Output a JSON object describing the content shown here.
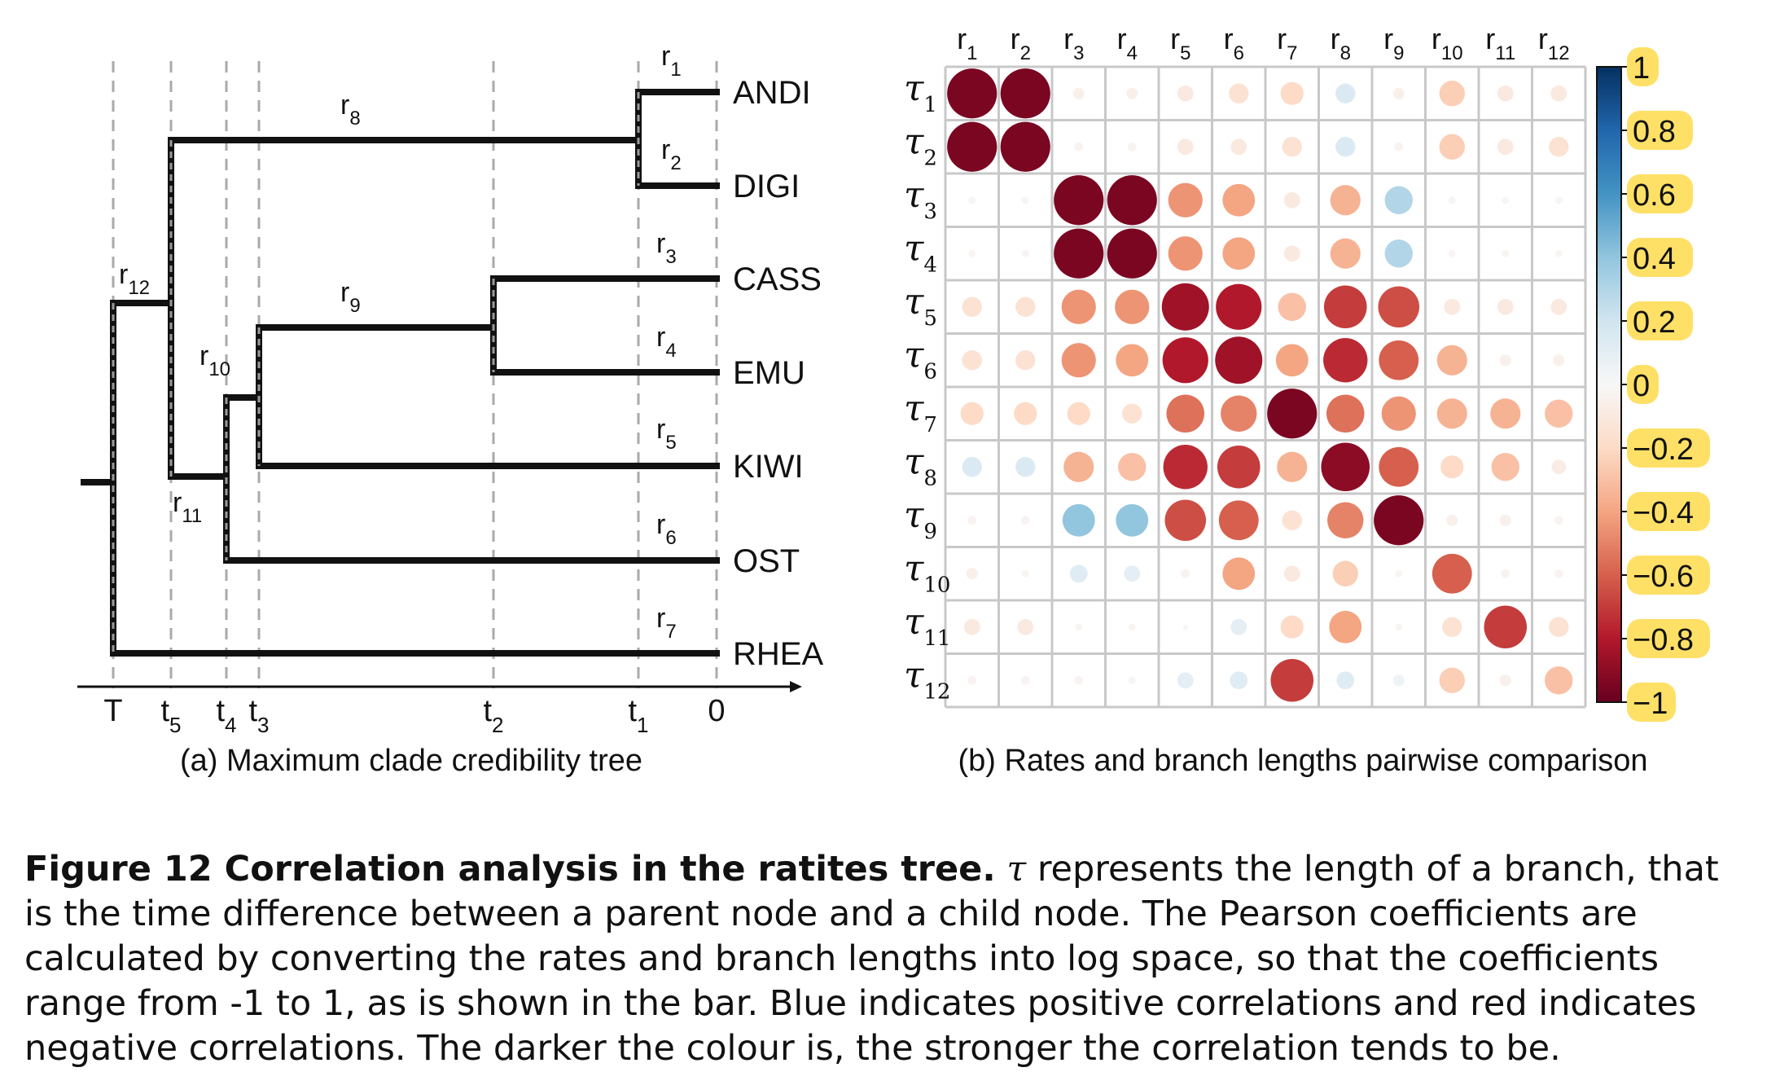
{
  "tree": {
    "caption": "(a) Maximum clade credibility tree",
    "leaves": [
      "ANDI",
      "DIGI",
      "CASS",
      "EMU",
      "KIWI",
      "OST",
      "RHEA"
    ],
    "branch_labels": [
      {
        "base": "r",
        "sub": "1"
      },
      {
        "base": "r",
        "sub": "2"
      },
      {
        "base": "r",
        "sub": "3"
      },
      {
        "base": "r",
        "sub": "4"
      },
      {
        "base": "r",
        "sub": "5"
      },
      {
        "base": "r",
        "sub": "6"
      },
      {
        "base": "r",
        "sub": "7"
      },
      {
        "base": "r",
        "sub": "8"
      },
      {
        "base": "r",
        "sub": "9"
      },
      {
        "base": "r",
        "sub": "10"
      },
      {
        "base": "r",
        "sub": "11"
      },
      {
        "base": "r",
        "sub": "12"
      }
    ],
    "axis_ticks": [
      {
        "base": "T",
        "sub": ""
      },
      {
        "base": "t",
        "sub": "5"
      },
      {
        "base": "t",
        "sub": "4"
      },
      {
        "base": "t",
        "sub": "3"
      },
      {
        "base": "t",
        "sub": "2"
      },
      {
        "base": "t",
        "sub": "1"
      },
      {
        "base": "0",
        "sub": ""
      }
    ]
  },
  "matrix": {
    "caption": "(b) Rates and branch lengths pairwise comparison",
    "col_labels": [
      "1",
      "2",
      "3",
      "4",
      "5",
      "6",
      "7",
      "8",
      "9",
      "10",
      "11",
      "12"
    ],
    "col_base": "r",
    "row_labels": [
      "1",
      "2",
      "3",
      "4",
      "5",
      "6",
      "7",
      "8",
      "9",
      "10",
      "11",
      "12"
    ],
    "row_base": "τ",
    "colorbar_ticks": [
      "1",
      "0.8",
      "0.6",
      "0.4",
      "0.2",
      "0",
      "−0.2",
      "−0.4",
      "−0.6",
      "−0.8",
      "−1"
    ],
    "colors": {
      "positive_max": "#053061",
      "zero": "#f7f7f7",
      "negative_max": "#67001f",
      "grid": "#c8c8c8",
      "tick_highlight": "#ffe066"
    }
  },
  "chart_data": {
    "type": "heatmap",
    "x": [
      "r1",
      "r2",
      "r3",
      "r4",
      "r5",
      "r6",
      "r7",
      "r8",
      "r9",
      "r10",
      "r11",
      "r12"
    ],
    "y": [
      "τ1",
      "τ2",
      "τ3",
      "τ4",
      "τ5",
      "τ6",
      "τ7",
      "τ8",
      "τ9",
      "τ10",
      "τ11",
      "τ12"
    ],
    "zlim": [
      -1,
      1
    ],
    "values": [
      [
        -0.95,
        -0.95,
        -0.05,
        -0.05,
        -0.1,
        -0.15,
        -0.2,
        0.15,
        -0.05,
        -0.25,
        -0.1,
        -0.1
      ],
      [
        -0.95,
        -0.95,
        -0.03,
        -0.03,
        -0.1,
        -0.1,
        -0.15,
        0.15,
        -0.03,
        -0.25,
        -0.1,
        -0.15
      ],
      [
        -0.02,
        -0.02,
        -0.95,
        -0.95,
        -0.45,
        -0.4,
        -0.1,
        -0.35,
        0.3,
        -0.02,
        -0.02,
        -0.02
      ],
      [
        -0.02,
        -0.02,
        -0.95,
        -0.95,
        -0.45,
        -0.4,
        -0.1,
        -0.35,
        0.3,
        -0.02,
        -0.02,
        -0.02
      ],
      [
        -0.15,
        -0.15,
        -0.45,
        -0.45,
        -0.85,
        -0.8,
        -0.3,
        -0.7,
        -0.65,
        -0.1,
        -0.1,
        -0.1
      ],
      [
        -0.15,
        -0.15,
        -0.45,
        -0.4,
        -0.8,
        -0.85,
        -0.4,
        -0.75,
        -0.6,
        -0.35,
        -0.05,
        -0.05
      ],
      [
        -0.2,
        -0.2,
        -0.2,
        -0.15,
        -0.55,
        -0.5,
        -0.95,
        -0.55,
        -0.45,
        -0.35,
        -0.35,
        -0.3
      ],
      [
        0.15,
        0.15,
        -0.35,
        -0.3,
        -0.75,
        -0.7,
        -0.35,
        -0.9,
        -0.6,
        -0.2,
        -0.3,
        -0.08
      ],
      [
        -0.03,
        -0.03,
        0.4,
        0.4,
        -0.65,
        -0.6,
        -0.15,
        -0.5,
        -0.95,
        -0.05,
        -0.05,
        -0.03
      ],
      [
        -0.05,
        -0.02,
        0.12,
        0.1,
        -0.03,
        -0.4,
        -0.1,
        -0.25,
        -0.02,
        -0.6,
        -0.03,
        -0.03
      ],
      [
        -0.1,
        -0.1,
        -0.02,
        -0.02,
        -0.01,
        0.1,
        -0.2,
        -0.4,
        -0.02,
        -0.15,
        -0.7,
        -0.15
      ],
      [
        -0.03,
        -0.03,
        -0.03,
        -0.02,
        0.1,
        0.12,
        -0.7,
        0.12,
        0.05,
        -0.25,
        -0.05,
        -0.3
      ]
    ]
  },
  "caption": {
    "label": "Figure 12",
    "title": "Correlation analysis in the ratites tree.",
    "tau_symbol": "τ",
    "text": "represents the length of a branch, that is the time difference between a parent node and a child node. The Pearson coefficients are calculated by converting the rates and branch lengths into log space, so that the coefficients range from -1 to 1, as is shown in the bar. Blue indicates positive correlations and red indicates negative correlations. The darker the colour is, the stronger the correlation tends to be."
  }
}
